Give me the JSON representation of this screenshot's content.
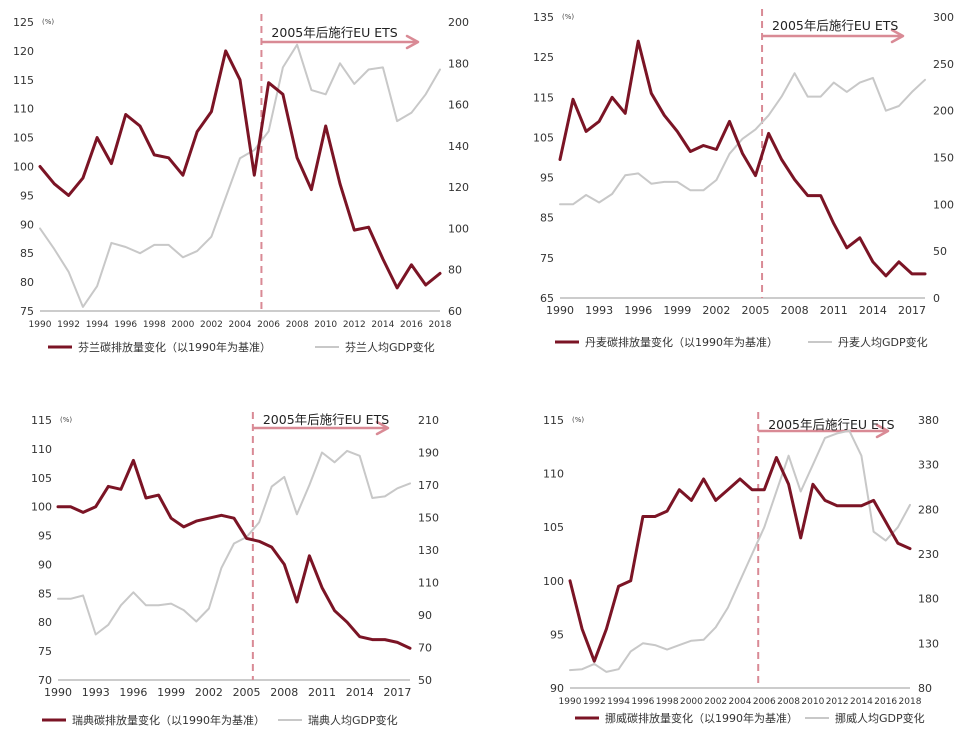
{
  "chart_data": [
    {
      "type": "line",
      "unit_label": "(%)",
      "annotation": "2005年后施行EU ETS",
      "x": [
        1990,
        1991,
        1992,
        1993,
        1994,
        1995,
        1996,
        1997,
        1998,
        1999,
        2000,
        2001,
        2002,
        2003,
        2004,
        2005,
        2006,
        2007,
        2008,
        2009,
        2010,
        2011,
        2012,
        2013,
        2014,
        2015,
        2016,
        2017,
        2018
      ],
      "x_ticks": [
        "1990",
        "1992",
        "1994",
        "1996",
        "1998",
        "2000",
        "2002",
        "2004",
        "2006",
        "2008",
        "2010",
        "2012",
        "2014",
        "2016",
        "2018"
      ],
      "left_ticks": [
        "75",
        "80",
        "85",
        "90",
        "95",
        "100",
        "105",
        "110",
        "115",
        "120",
        "125"
      ],
      "right_ticks": [
        "60",
        "80",
        "100",
        "120",
        "140",
        "160",
        "180",
        "200"
      ],
      "ylim_left": [
        75,
        125
      ],
      "ylim_right": [
        60,
        200
      ],
      "series": [
        {
          "name": "芬兰碳排放量变化（以1990年为基准）",
          "axis": "left",
          "color": "#7b1425",
          "values": [
            100,
            97,
            95,
            98,
            105,
            100.5,
            109,
            107,
            102,
            101.5,
            98.5,
            106,
            109.5,
            120,
            115,
            98.5,
            114.5,
            112.5,
            101.5,
            96,
            107,
            97,
            89,
            89.5,
            84,
            79,
            83,
            79.5,
            81.5
          ]
        },
        {
          "name": "芬兰人均GDP变化",
          "axis": "right",
          "color": "#c8c8c8",
          "values": [
            100,
            90,
            79,
            62,
            72,
            93,
            91,
            88,
            92,
            92,
            86,
            89,
            96,
            115,
            134,
            138,
            147,
            178,
            189,
            167,
            165,
            180,
            170,
            177,
            178,
            152,
            156,
            165,
            177
          ]
        }
      ]
    },
    {
      "type": "line",
      "unit_label": "(%)",
      "annotation": "2005年后施行EU ETS",
      "x": [
        1990,
        1991,
        1992,
        1993,
        1994,
        1995,
        1996,
        1997,
        1998,
        1999,
        2000,
        2001,
        2002,
        2003,
        2004,
        2005,
        2006,
        2007,
        2008,
        2009,
        2010,
        2011,
        2012,
        2013,
        2014,
        2015,
        2016,
        2017,
        2018
      ],
      "x_ticks": [
        "1990",
        "1993",
        "1996",
        "1999",
        "2002",
        "2005",
        "2008",
        "2011",
        "2014",
        "2017"
      ],
      "left_ticks": [
        "65",
        "75",
        "85",
        "95",
        "105",
        "115",
        "125",
        "135"
      ],
      "right_ticks": [
        "0",
        "50",
        "100",
        "150",
        "200",
        "250",
        "300"
      ],
      "ylim_left": [
        65,
        135
      ],
      "ylim_right": [
        0,
        300
      ],
      "series": [
        {
          "name": "丹麦碳排放量变化（以1990年为基准）",
          "axis": "left",
          "color": "#7b1425",
          "values": [
            99.5,
            114.5,
            106.5,
            109,
            115,
            111,
            129,
            116,
            110.5,
            106.5,
            101.5,
            103,
            102,
            109,
            101,
            95.5,
            106,
            99.5,
            94.5,
            90.5,
            90.5,
            83.5,
            77.5,
            80,
            74,
            70.5,
            74,
            71,
            71
          ]
        },
        {
          "name": "丹麦人均GDP变化",
          "axis": "right",
          "color": "#c8c8c8",
          "values": [
            100,
            100,
            110,
            102,
            111,
            131,
            133,
            122,
            124,
            124,
            115,
            115,
            126,
            154,
            170,
            180,
            195,
            215,
            240,
            215,
            215,
            230,
            220,
            230,
            235,
            200,
            205,
            220,
            233
          ]
        }
      ]
    },
    {
      "type": "line",
      "unit_label": "(%)",
      "annotation": "2005年后施行EU ETS",
      "x": [
        1990,
        1991,
        1992,
        1993,
        1994,
        1995,
        1996,
        1997,
        1998,
        1999,
        2000,
        2001,
        2002,
        2003,
        2004,
        2005,
        2006,
        2007,
        2008,
        2009,
        2010,
        2011,
        2012,
        2013,
        2014,
        2015,
        2016,
        2017,
        2018
      ],
      "x_ticks": [
        "1990",
        "1993",
        "1996",
        "1999",
        "2002",
        "2005",
        "2008",
        "2011",
        "2014",
        "2017"
      ],
      "left_ticks": [
        "70",
        "75",
        "80",
        "85",
        "90",
        "95",
        "100",
        "105",
        "110",
        "115"
      ],
      "right_ticks": [
        "50",
        "70",
        "90",
        "110",
        "130",
        "150",
        "170",
        "190",
        "210"
      ],
      "ylim_left": [
        70,
        115
      ],
      "ylim_right": [
        50,
        210
      ],
      "series": [
        {
          "name": "瑞典碳排放量变化（以1990年为基准）",
          "axis": "left",
          "color": "#7b1425",
          "values": [
            100,
            100,
            99,
            100,
            103.5,
            103,
            108,
            101.5,
            102,
            98,
            96.5,
            97.5,
            98,
            98.5,
            98,
            94.5,
            94,
            93,
            90,
            83.5,
            91.5,
            86,
            82,
            80,
            77.5,
            77,
            77,
            76.5,
            75.5
          ]
        },
        {
          "name": "瑞典人均GDP变化",
          "axis": "right",
          "color": "#c8c8c8",
          "values": [
            100,
            100,
            102,
            78,
            84,
            96,
            104,
            96,
            96,
            97,
            93,
            86,
            94,
            119,
            134,
            138,
            147,
            169,
            175,
            152,
            170,
            190,
            184,
            191,
            188,
            162,
            163,
            168,
            171
          ]
        }
      ]
    },
    {
      "type": "line",
      "unit_label": "(%)",
      "annotation": "2005年后施行EU ETS",
      "x": [
        1990,
        1991,
        1992,
        1993,
        1994,
        1995,
        1996,
        1997,
        1998,
        1999,
        2000,
        2001,
        2002,
        2003,
        2004,
        2005,
        2006,
        2007,
        2008,
        2009,
        2010,
        2011,
        2012,
        2013,
        2014,
        2015,
        2016,
        2017,
        2018
      ],
      "x_ticks": [
        "1990",
        "1992",
        "1994",
        "1996",
        "1998",
        "2000",
        "2002",
        "2004",
        "2006",
        "2008",
        "2010",
        "2012",
        "2014",
        "2016",
        "2018"
      ],
      "left_ticks": [
        "90",
        "95",
        "100",
        "105",
        "110",
        "115"
      ],
      "right_ticks": [
        "80",
        "130",
        "180",
        "230",
        "280",
        "330",
        "380"
      ],
      "ylim_left": [
        90,
        115
      ],
      "ylim_right": [
        80,
        380
      ],
      "series": [
        {
          "name": "挪威碳排放量变化（以1990年为基准）",
          "axis": "left",
          "color": "#7b1425",
          "values": [
            100,
            95.5,
            92.5,
            95.5,
            99.5,
            100,
            106,
            106,
            106.5,
            108.5,
            107.5,
            109.5,
            107.5,
            108.5,
            109.5,
            108.5,
            108.5,
            111.5,
            109,
            104,
            109,
            107.5,
            107,
            107,
            107,
            107.5,
            105.5,
            103.5,
            103
          ]
        },
        {
          "name": "挪威人均GDP变化",
          "axis": "right",
          "color": "#c8c8c8",
          "values": [
            100,
            101,
            107,
            98,
            101,
            121,
            130,
            128,
            123,
            128,
            133,
            134,
            148,
            170,
            200,
            230,
            260,
            300,
            340,
            300,
            330,
            360,
            365,
            368,
            340,
            255,
            245,
            260,
            285
          ]
        }
      ]
    }
  ]
}
